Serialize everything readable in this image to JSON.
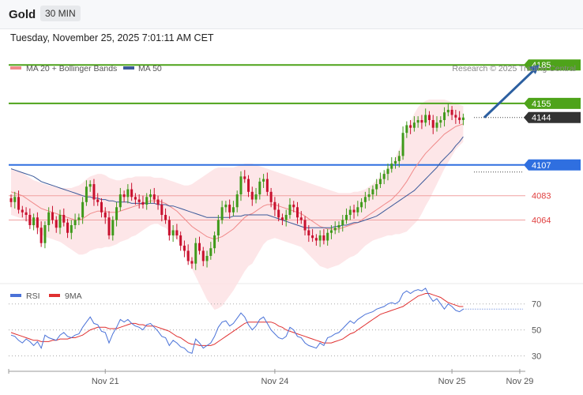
{
  "header": {
    "symbol": "Gold",
    "timeframe": "30 MIN"
  },
  "datetime": "Tuesday, November 25, 2025 7:01:11 AM CET",
  "colors": {
    "resistance": "#4ea31a",
    "support": "#2f6fe0",
    "pivot": "#333333",
    "minor": "#e04040",
    "candle_up": "#3f9a1a",
    "candle_down": "#c8102e",
    "bb_fill": "#fde2e4",
    "ma20": "#f08a8a",
    "ma50": "#3c5a9a",
    "arrow": "#2c5fa0",
    "rsi": "#4a72d8",
    "rsi_ma": "#e03030"
  },
  "icons": {
    "legend_marker": "line-swatch"
  },
  "chart_data": [
    {
      "type": "candlestick",
      "title": "Gold",
      "timeframe": "30 MIN",
      "xlabel": "",
      "ylabel": "",
      "legend": [
        {
          "name": "MA 20 + Bollinger Bands",
          "color": "#f08a8a"
        },
        {
          "name": "MA 50",
          "color": "#3c5a9a"
        }
      ],
      "legend_position": "top-left",
      "credit": "Research © 2025 Trading Central",
      "ylim": [
        4015,
        4195
      ],
      "x_tick_labels": [
        {
          "label": "Nov 21",
          "index": 25
        },
        {
          "label": "Nov 24",
          "index": 70
        },
        {
          "label": "Nov 25",
          "index": 117
        },
        {
          "label": "Nov 29",
          "index": 135
        }
      ],
      "levels": [
        {
          "value": 4185,
          "label": "4185",
          "kind": "resistance"
        },
        {
          "value": 4155,
          "label": "4155",
          "kind": "resistance"
        },
        {
          "value": 4144,
          "label": "4144",
          "kind": "pivot"
        },
        {
          "value": 4107,
          "label": "4107",
          "kind": "support"
        },
        {
          "value": 4083,
          "label": "4083",
          "kind": "minor"
        },
        {
          "value": 4064,
          "label": "4064",
          "kind": "minor"
        }
      ],
      "forecast_arrow": {
        "from": {
          "index": 126,
          "value": 4144
        },
        "to": {
          "index": 140,
          "value": 4184
        }
      },
      "closes": [
        4078,
        4082,
        4072,
        4070,
        4068,
        4060,
        4066,
        4058,
        4046,
        4060,
        4070,
        4064,
        4058,
        4068,
        4062,
        4054,
        4060,
        4064,
        4066,
        4078,
        4090,
        4092,
        4080,
        4078,
        4070,
        4066,
        4052,
        4064,
        4074,
        4084,
        4082,
        4088,
        4082,
        4080,
        4078,
        4076,
        4082,
        4084,
        4080,
        4076,
        4068,
        4064,
        4052,
        4056,
        4052,
        4044,
        4040,
        4032,
        4030,
        4046,
        4040,
        4032,
        4036,
        4042,
        4052,
        4064,
        4074,
        4076,
        4070,
        4074,
        4084,
        4098,
        4096,
        4086,
        4080,
        4084,
        4094,
        4096,
        4086,
        4078,
        4072,
        4066,
        4064,
        4068,
        4076,
        4074,
        4066,
        4064,
        4056,
        4052,
        4050,
        4048,
        4052,
        4048,
        4054,
        4056,
        4058,
        4060,
        4064,
        4068,
        4072,
        4070,
        4074,
        4078,
        4082,
        4084,
        4088,
        4092,
        4096,
        4100,
        4104,
        4108,
        4110,
        4114,
        4132,
        4138,
        4136,
        4140,
        4142,
        4140,
        4146,
        4142,
        4136,
        4140,
        4142,
        4148,
        4150,
        4146,
        4144,
        4142,
        4144
      ],
      "ma20": [
        4086,
        4085,
        4084,
        4083,
        4081,
        4079,
        4077,
        4075,
        4073,
        4072,
        4071,
        4070,
        4069,
        4068,
        4067,
        4066,
        4065,
        4064,
        4064,
        4065,
        4067,
        4069,
        4070,
        4071,
        4071,
        4071,
        4070,
        4070,
        4070,
        4071,
        4072,
        4073,
        4074,
        4075,
        4076,
        4077,
        4078,
        4079,
        4079,
        4079,
        4078,
        4077,
        4075,
        4073,
        4071,
        4068,
        4065,
        4062,
        4059,
        4057,
        4055,
        4053,
        4051,
        4050,
        4049,
        4050,
        4051,
        4053,
        4055,
        4057,
        4060,
        4063,
        4066,
        4068,
        4069,
        4071,
        4073,
        4075,
        4076,
        4076,
        4076,
        4075,
        4074,
        4073,
        4072,
        4071,
        4070,
        4069,
        4067,
        4065,
        4063,
        4061,
        4059,
        4058,
        4057,
        4057,
        4057,
        4057,
        4058,
        4059,
        4060,
        4061,
        4062,
        4064,
        4066,
        4068,
        4070,
        4072,
        4074,
        4076,
        4078,
        4080,
        4083,
        4086,
        4090,
        4094,
        4099,
        4104,
        4108,
        4112,
        4116,
        4119,
        4122,
        4125,
        4128,
        4131,
        4133,
        4135,
        4137,
        4138,
        4139
      ],
      "bb_upper": [
        4104,
        4103,
        4102,
        4101,
        4099,
        4097,
        4095,
        4094,
        4093,
        4092,
        4091,
        4091,
        4090,
        4089,
        4089,
        4089,
        4089,
        4090,
        4091,
        4093,
        4096,
        4098,
        4099,
        4100,
        4100,
        4099,
        4097,
        4096,
        4095,
        4095,
        4096,
        4097,
        4097,
        4098,
        4098,
        4098,
        4098,
        4098,
        4097,
        4097,
        4097,
        4096,
        4095,
        4094,
        4093,
        4092,
        4091,
        4091,
        4092,
        4094,
        4096,
        4098,
        4100,
        4102,
        4104,
        4105,
        4105,
        4105,
        4105,
        4105,
        4106,
        4107,
        4108,
        4108,
        4108,
        4107,
        4106,
        4105,
        4104,
        4103,
        4102,
        4101,
        4100,
        4099,
        4098,
        4097,
        4096,
        4095,
        4094,
        4093,
        4092,
        4091,
        4090,
        4089,
        4088,
        4087,
        4086,
        4085,
        4085,
        4085,
        4085,
        4086,
        4086,
        4087,
        4088,
        4090,
        4092,
        4095,
        4098,
        4101,
        4104,
        4108,
        4113,
        4119,
        4126,
        4133,
        4140,
        4147,
        4152,
        4155,
        4157,
        4158,
        4158,
        4158,
        4158,
        4158,
        4157,
        4156,
        4155,
        4154,
        4153
      ],
      "bb_lower": [
        4068,
        4067,
        4066,
        4065,
        4063,
        4061,
        4059,
        4056,
        4053,
        4051,
        4050,
        4049,
        4048,
        4047,
        4045,
        4043,
        4041,
        4039,
        4037,
        4037,
        4038,
        4040,
        4041,
        4042,
        4042,
        4043,
        4043,
        4044,
        4045,
        4047,
        4048,
        4049,
        4051,
        4052,
        4054,
        4056,
        4058,
        4060,
        4061,
        4061,
        4059,
        4058,
        4055,
        4052,
        4049,
        4044,
        4039,
        4033,
        4026,
        4020,
        4014,
        4008,
        4002,
        3998,
        3994,
        3995,
        3997,
        4001,
        4005,
        4009,
        4014,
        4019,
        4024,
        4028,
        4030,
        4035,
        4040,
        4045,
        4048,
        4049,
        4050,
        4049,
        4048,
        4047,
        4046,
        4045,
        4044,
        4043,
        4040,
        4037,
        4034,
        4031,
        4028,
        4027,
        4026,
        4027,
        4028,
        4029,
        4031,
        4033,
        4035,
        4036,
        4038,
        4041,
        4044,
        4046,
        4048,
        4049,
        4050,
        4051,
        4052,
        4052,
        4053,
        4053,
        4054,
        4055,
        4058,
        4061,
        4064,
        4069,
        4075,
        4080,
        4086,
        4092,
        4098,
        4104,
        4109,
        4114,
        4119,
        4122,
        4125
      ],
      "ma50": [
        4104,
        4103,
        4102,
        4101,
        4100,
        4099,
        4098,
        4096,
        4094,
        4093,
        4092,
        4091,
        4090,
        4089,
        4088,
        4087,
        4086,
        4085,
        4084,
        4083,
        4082,
        4082,
        4081,
        4081,
        4080,
        4080,
        4079,
        4079,
        4078,
        4078,
        4078,
        4078,
        4077,
        4077,
        4077,
        4077,
        4077,
        4077,
        4077,
        4076,
        4076,
        4076,
        4075,
        4075,
        4074,
        4073,
        4072,
        4071,
        4070,
        4069,
        4068,
        4067,
        4066,
        4066,
        4066,
        4066,
        4066,
        4066,
        4066,
        4067,
        4067,
        4067,
        4068,
        4068,
        4068,
        4068,
        4068,
        4068,
        4068,
        4067,
        4066,
        4065,
        4064,
        4063,
        4062,
        4061,
        4060,
        4059,
        4058,
        4058,
        4058,
        4058,
        4058,
        4058,
        4058,
        4058,
        4059,
        4059,
        4060,
        4060,
        4061,
        4062,
        4062,
        4063,
        4064,
        4065,
        4066,
        4067,
        4069,
        4071,
        4073,
        4075,
        4077,
        4079,
        4081,
        4083,
        4085,
        4087,
        4090,
        4093,
        4096,
        4099,
        4102,
        4105,
        4109,
        4112,
        4115,
        4118,
        4122,
        4125,
        4129
      ]
    },
    {
      "type": "line",
      "title": "",
      "legend": [
        {
          "name": "RSI",
          "color": "#4a72d8"
        },
        {
          "name": "9MA",
          "color": "#e03030"
        }
      ],
      "legend_position": "top-left",
      "ylim": [
        20,
        85
      ],
      "y_ticks": [
        70,
        50,
        30
      ],
      "rsi": [
        46,
        45,
        42,
        40,
        43,
        41,
        38,
        41,
        36,
        46,
        44,
        43,
        42,
        46,
        48,
        45,
        44,
        46,
        47,
        52,
        56,
        60,
        55,
        54,
        49,
        48,
        40,
        47,
        52,
        58,
        56,
        58,
        55,
        53,
        52,
        50,
        54,
        55,
        52,
        49,
        45,
        44,
        38,
        42,
        40,
        37,
        36,
        33,
        32,
        43,
        40,
        36,
        38,
        40,
        45,
        52,
        56,
        57,
        53,
        55,
        59,
        63,
        60,
        54,
        50,
        53,
        58,
        60,
        55,
        50,
        47,
        44,
        43,
        45,
        52,
        50,
        45,
        44,
        40,
        38,
        37,
        36,
        40,
        38,
        44,
        45,
        47,
        48,
        51,
        54,
        57,
        55,
        58,
        60,
        62,
        63,
        64,
        66,
        67,
        68,
        70,
        71,
        70,
        72,
        78,
        80,
        78,
        80,
        81,
        80,
        82,
        76,
        72,
        74,
        70,
        66,
        70,
        68,
        65,
        64,
        66
      ],
      "rsi_ma": [
        48,
        47,
        46,
        45,
        44,
        43,
        42,
        42,
        41,
        41,
        41,
        42,
        42,
        43,
        43,
        43,
        44,
        44,
        45,
        46,
        48,
        50,
        51,
        52,
        52,
        52,
        51,
        51,
        51,
        52,
        53,
        54,
        55,
        55,
        54,
        54,
        53,
        53,
        53,
        52,
        51,
        50,
        49,
        47,
        45,
        44,
        42,
        40,
        39,
        39,
        38,
        38,
        38,
        38,
        39,
        41,
        43,
        45,
        47,
        49,
        51,
        53,
        55,
        56,
        56,
        56,
        56,
        56,
        56,
        56,
        55,
        53,
        52,
        50,
        49,
        48,
        47,
        46,
        45,
        44,
        43,
        42,
        41,
        40,
        40,
        40,
        41,
        42,
        43,
        45,
        47,
        48,
        50,
        52,
        54,
        56,
        58,
        60,
        62,
        63,
        64,
        65,
        66,
        67,
        68,
        70,
        72,
        74,
        76,
        77,
        78,
        78,
        77,
        76,
        75,
        73,
        71,
        70,
        69,
        68,
        68
      ]
    }
  ]
}
